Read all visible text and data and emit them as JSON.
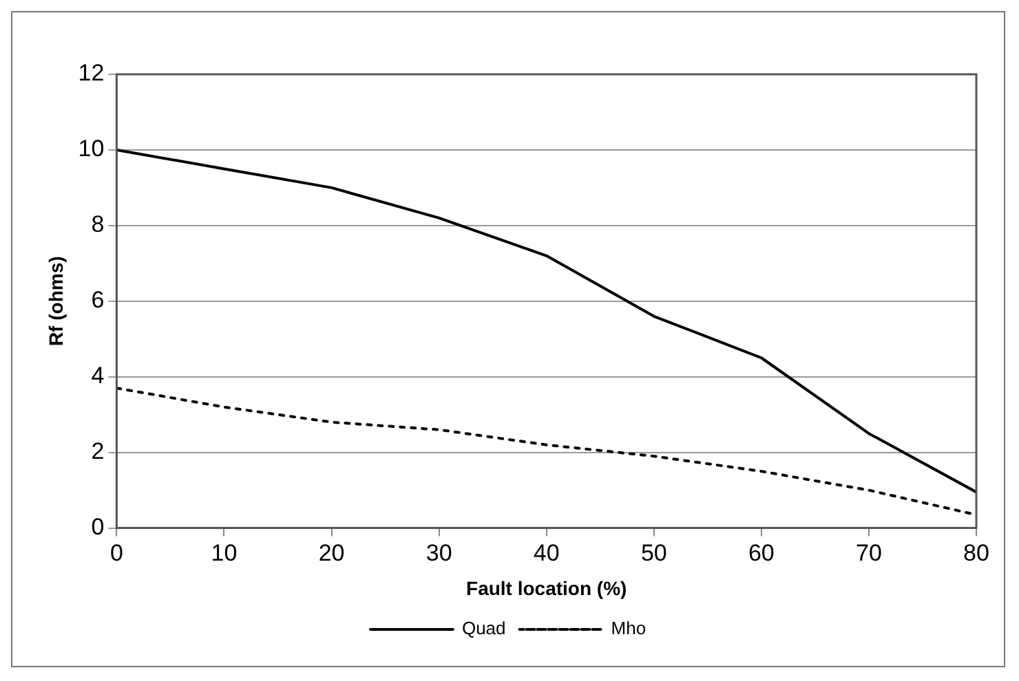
{
  "chart_data": {
    "type": "line",
    "xlabel": "Fault location (%)",
    "ylabel": "Rf (ohms)",
    "x": [
      0,
      10,
      20,
      30,
      40,
      50,
      60,
      70,
      80
    ],
    "series": [
      {
        "name": "Quad",
        "color": "#000000",
        "line_style": "solid",
        "values": [
          10,
          9.5,
          9,
          8.2,
          7.2,
          5.6,
          4.5,
          2.5,
          0.95
        ]
      },
      {
        "name": "Mho",
        "color": "#000000",
        "line_style": "dotted",
        "values": [
          3.7,
          3.2,
          2.8,
          2.6,
          2.2,
          1.9,
          1.5,
          1.0,
          0.35
        ]
      }
    ],
    "xlim": [
      0,
      80
    ],
    "xticks": [
      0,
      10,
      20,
      30,
      40,
      50,
      60,
      70,
      80
    ],
    "ylim": [
      0,
      12
    ],
    "yticks": [
      0,
      2,
      4,
      6,
      8,
      10,
      12
    ],
    "grid": "y",
    "legend": "bottom",
    "marker": "none"
  }
}
